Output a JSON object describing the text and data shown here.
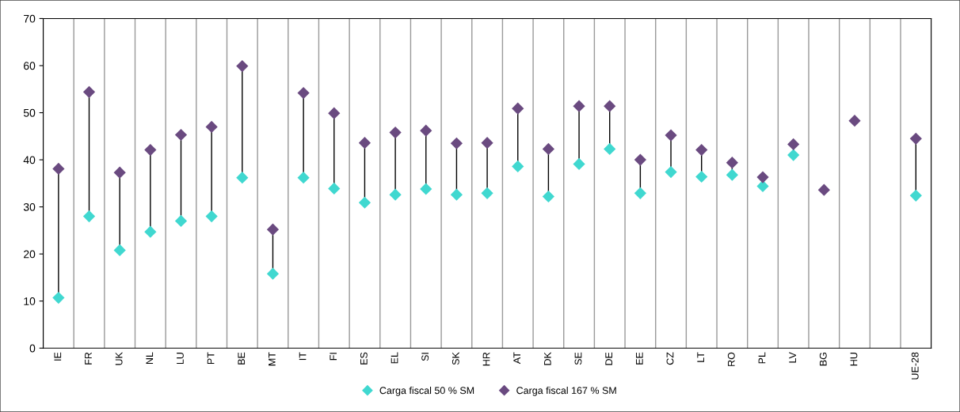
{
  "chart_data": {
    "type": "scatter",
    "categories": [
      "IE",
      "FR",
      "UK",
      "NL",
      "LU",
      "PT",
      "BE",
      "MT",
      "IT",
      "FI",
      "ES",
      "EL",
      "SI",
      "SK",
      "HR",
      "AT",
      "DK",
      "SE",
      "DE",
      "EE",
      "CZ",
      "LT",
      "RO",
      "PL",
      "LV",
      "BG",
      "HU",
      null,
      "UE-28"
    ],
    "series": [
      {
        "name": "Carga fiscal 50 % SM",
        "color": "#40d8d0",
        "values": [
          10.7,
          28.0,
          20.8,
          24.7,
          27.0,
          28.0,
          36.2,
          15.8,
          36.2,
          33.9,
          30.9,
          32.6,
          33.8,
          32.6,
          32.9,
          38.6,
          32.2,
          39.1,
          42.3,
          32.9,
          37.4,
          36.4,
          36.8,
          34.4,
          41.0,
          null,
          null,
          null,
          32.4
        ]
      },
      {
        "name": "Carga fiscal 167 % SM",
        "color": "#6a4a80",
        "values": [
          38.1,
          54.4,
          37.3,
          42.1,
          45.3,
          47.0,
          59.9,
          25.2,
          54.2,
          49.9,
          43.6,
          45.8,
          46.2,
          43.5,
          43.6,
          50.9,
          42.3,
          51.4,
          51.4,
          40.0,
          45.2,
          42.1,
          39.4,
          36.3,
          43.3,
          33.6,
          48.3,
          null,
          44.5
        ]
      }
    ],
    "ylim": [
      0,
      70
    ],
    "yticks": [
      0,
      10,
      20,
      30,
      40,
      50,
      60,
      70
    ],
    "grid": "x",
    "legend": "bottom",
    "marker": "diamond"
  }
}
